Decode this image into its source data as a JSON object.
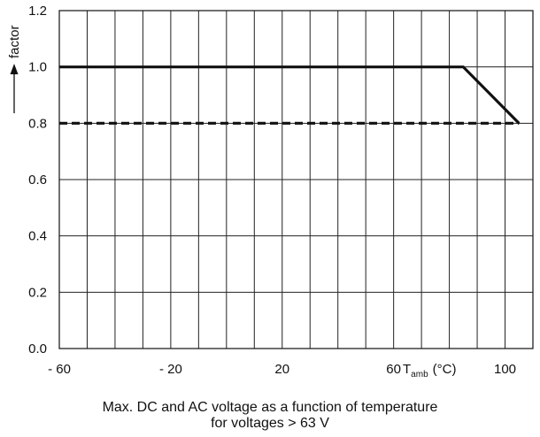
{
  "chart_data": {
    "type": "line",
    "title": "",
    "xlabel": {
      "symbol": "T",
      "subscript": "amb",
      "unit": "(°C)"
    },
    "ylabel": "factor",
    "xlim": [
      -60,
      110
    ],
    "ylim": [
      0.0,
      1.2
    ],
    "x_ticks": [
      {
        "value": -60,
        "label": "- 60"
      },
      {
        "value": -20,
        "label": "- 20"
      },
      {
        "value": 20,
        "label": "20"
      },
      {
        "value": 60,
        "label": "60"
      },
      {
        "value": 100,
        "label": "100"
      }
    ],
    "y_ticks": [
      {
        "value": 0.0,
        "label": "0.0"
      },
      {
        "value": 0.2,
        "label": "0.2"
      },
      {
        "value": 0.4,
        "label": "0.4"
      },
      {
        "value": 0.6,
        "label": "0.6"
      },
      {
        "value": 0.8,
        "label": "0.8"
      },
      {
        "value": 1.0,
        "label": "1.0"
      },
      {
        "value": 1.2,
        "label": "1.2"
      }
    ],
    "grid": true,
    "grid_x_step": 10,
    "grid_y_step": 0.2,
    "series": [
      {
        "style": "solid",
        "color": "#111111",
        "points": [
          [
            -60,
            1.0
          ],
          [
            85,
            1.0
          ],
          [
            105,
            0.8
          ]
        ]
      },
      {
        "style": "dashed",
        "color": "#111111",
        "points": [
          [
            -60,
            0.8
          ],
          [
            105,
            0.8
          ]
        ]
      }
    ]
  },
  "caption": {
    "line1": "Max. DC and AC voltage as a function of temperature",
    "line2": "for voltages > 63 V"
  }
}
